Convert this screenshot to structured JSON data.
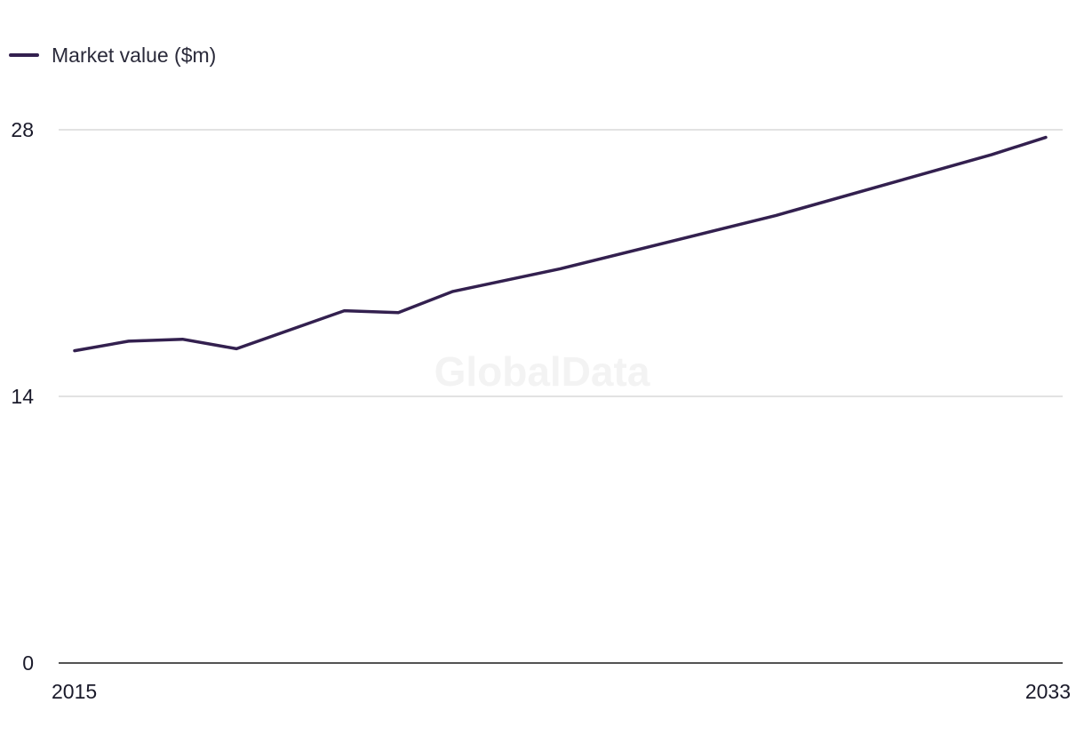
{
  "chart_data": {
    "type": "line",
    "legend": {
      "position": "top-left",
      "entries": [
        "Market value ($m)"
      ]
    },
    "series": [
      {
        "name": "Market value ($m)",
        "color": "#33204f",
        "points": [
          {
            "x": 2015,
            "y": 16.4
          },
          {
            "x": 2016,
            "y": 16.9
          },
          {
            "x": 2017,
            "y": 17.0
          },
          {
            "x": 2018,
            "y": 16.5
          },
          {
            "x": 2020,
            "y": 18.5
          },
          {
            "x": 2021,
            "y": 18.4
          },
          {
            "x": 2022,
            "y": 19.5
          },
          {
            "x": 2024,
            "y": 20.7
          },
          {
            "x": 2028,
            "y": 23.5
          },
          {
            "x": 2032,
            "y": 26.7
          },
          {
            "x": 2033,
            "y": 27.6
          }
        ]
      }
    ],
    "x_ticks": [
      "2015",
      "2033"
    ],
    "xlim": [
      2015,
      2033
    ],
    "y_ticks": [
      "0",
      "14",
      "28"
    ],
    "ylim": [
      0,
      28
    ],
    "grid": true,
    "watermark": "GlobalData",
    "colors": {
      "line": "#33204f",
      "grid": "#d9d9d9",
      "axis": "#1a1a1a"
    }
  }
}
